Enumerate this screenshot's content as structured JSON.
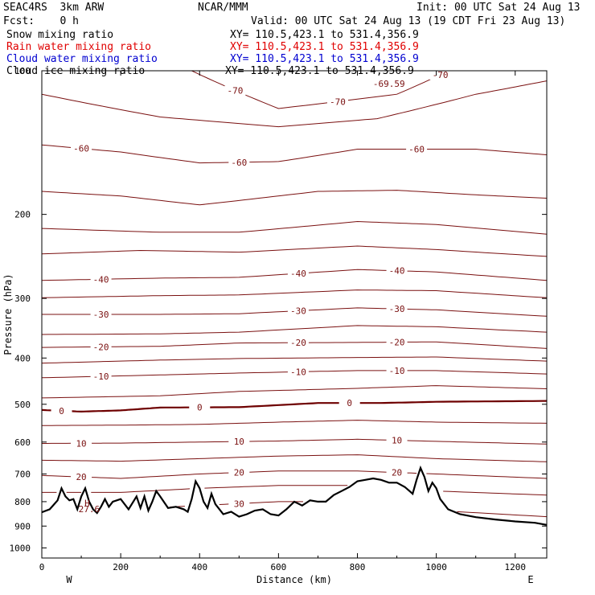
{
  "header": {
    "model": "SEAC4RS  3km ARW",
    "org": "NCAR/MMM",
    "init": "Init: 00 UTC Sat 24 Aug 13",
    "fcst": "Fcst:    0 h",
    "valid": "Valid: 00 UTC Sat 24 Aug 13 (19 CDT Fri 23 Aug 13)"
  },
  "fields": [
    {
      "name": "Snow mixing ratio",
      "xy": "XY= 110.5,423.1 to 531.4,356.9",
      "color": "#000000"
    },
    {
      "name": "Rain water mixing ratio",
      "xy": "XY= 110.5,423.1 to 531.4,356.9",
      "color": "#e00000"
    },
    {
      "name": "Cloud water mixing ratio",
      "xy": "XY= 110.5,423.1 to 531.4,356.9",
      "color": "#0000d0"
    },
    {
      "name": "Cloud ice mixing ratio",
      "xy": "XY= 110.5,423.1 to 531.4,356.9",
      "color": "#000000"
    }
  ],
  "chart_data": {
    "type": "line",
    "xlabel": "Distance (km)",
    "ylabel": "Pressure (hPa)",
    "xlim": [
      0,
      1280
    ],
    "ylim": [
      1050,
      100
    ],
    "yscale": "log",
    "x_ticks": [
      0,
      200,
      400,
      600,
      800,
      1000,
      1200
    ],
    "y_ticks": [
      200,
      300,
      400,
      500,
      600,
      700,
      800,
      900,
      1000
    ],
    "top_tick_label": "100",
    "end_labels": {
      "left": "W",
      "right": "E"
    },
    "contour_color": "#7a1010",
    "zero_contour_color": "#6e0000",
    "annotations": {
      "max_label": "-69.59",
      "high_marker": "H",
      "high_value": "27.6"
    },
    "isotherms": [
      {
        "value": -70,
        "label": "-70",
        "points": [
          [
            380,
            100
          ],
          [
            600,
            120
          ],
          [
            900,
            112
          ],
          [
            1120,
            92
          ],
          [
            1280,
            80
          ]
        ]
      },
      {
        "value": -65,
        "label": "",
        "points": [
          [
            0,
            112
          ],
          [
            300,
            125
          ],
          [
            600,
            131
          ],
          [
            850,
            126
          ],
          [
            1100,
            112
          ],
          [
            1280,
            105
          ]
        ]
      },
      {
        "value": -60,
        "label": "-60",
        "points": [
          [
            0,
            143
          ],
          [
            200,
            148
          ],
          [
            400,
            156
          ],
          [
            600,
            155
          ],
          [
            800,
            146
          ],
          [
            1100,
            146
          ],
          [
            1280,
            150
          ]
        ]
      },
      {
        "value": -55,
        "label": "",
        "points": [
          [
            0,
            179
          ],
          [
            200,
            183
          ],
          [
            400,
            191
          ],
          [
            700,
            179
          ],
          [
            900,
            178
          ],
          [
            1100,
            182
          ],
          [
            1280,
            185
          ]
        ]
      },
      {
        "value": -50,
        "label": "",
        "points": [
          [
            0,
            214
          ],
          [
            300,
            218
          ],
          [
            500,
            218
          ],
          [
            800,
            207
          ],
          [
            1000,
            210
          ],
          [
            1280,
            220
          ]
        ]
      },
      {
        "value": -45,
        "label": "",
        "points": [
          [
            0,
            242
          ],
          [
            250,
            238
          ],
          [
            500,
            240
          ],
          [
            800,
            233
          ],
          [
            1000,
            237
          ],
          [
            1280,
            245
          ]
        ]
      },
      {
        "value": -40,
        "label": "-40",
        "points": [
          [
            0,
            275
          ],
          [
            300,
            272
          ],
          [
            500,
            271
          ],
          [
            800,
            261
          ],
          [
            1000,
            264
          ],
          [
            1280,
            275
          ]
        ]
      },
      {
        "value": -35,
        "label": "",
        "points": [
          [
            0,
            299
          ],
          [
            300,
            296
          ],
          [
            500,
            295
          ],
          [
            800,
            288
          ],
          [
            1000,
            289
          ],
          [
            1280,
            299
          ]
        ]
      },
      {
        "value": -30,
        "label": "-30",
        "points": [
          [
            0,
            324
          ],
          [
            300,
            324
          ],
          [
            500,
            323
          ],
          [
            800,
            314
          ],
          [
            1000,
            317
          ],
          [
            1280,
            327
          ]
        ]
      },
      {
        "value": -25,
        "label": "",
        "points": [
          [
            0,
            357
          ],
          [
            300,
            356
          ],
          [
            500,
            353
          ],
          [
            800,
            342
          ],
          [
            1000,
            344
          ],
          [
            1280,
            353
          ]
        ]
      },
      {
        "value": -20,
        "label": "-20",
        "points": [
          [
            0,
            380
          ],
          [
            300,
            378
          ],
          [
            500,
            372
          ],
          [
            800,
            371
          ],
          [
            1000,
            370
          ],
          [
            1280,
            382
          ]
        ]
      },
      {
        "value": -15,
        "label": "",
        "points": [
          [
            0,
            410
          ],
          [
            300,
            404
          ],
          [
            500,
            401
          ],
          [
            800,
            399
          ],
          [
            1000,
            398
          ],
          [
            1280,
            406
          ]
        ]
      },
      {
        "value": -10,
        "label": "-10",
        "points": [
          [
            0,
            440
          ],
          [
            300,
            434
          ],
          [
            500,
            430
          ],
          [
            800,
            425
          ],
          [
            1000,
            425
          ],
          [
            1280,
            432
          ]
        ]
      },
      {
        "value": -5,
        "label": "",
        "points": [
          [
            0,
            485
          ],
          [
            300,
            480
          ],
          [
            500,
            470
          ],
          [
            800,
            463
          ],
          [
            1000,
            457
          ],
          [
            1280,
            464
          ]
        ]
      },
      {
        "value": 0,
        "label": "0",
        "points": [
          [
            0,
            514
          ],
          [
            100,
            518
          ],
          [
            200,
            515
          ],
          [
            300,
            508
          ],
          [
            500,
            507
          ],
          [
            700,
            497
          ],
          [
            860,
            497
          ],
          [
            1000,
            494
          ],
          [
            1280,
            492
          ]
        ]
      },
      {
        "value": 5,
        "label": "",
        "points": [
          [
            0,
            554
          ],
          [
            200,
            553
          ],
          [
            400,
            551
          ],
          [
            600,
            545
          ],
          [
            800,
            540
          ],
          [
            1000,
            545
          ],
          [
            1280,
            548
          ]
        ]
      },
      {
        "value": 10,
        "label": "10",
        "points": [
          [
            0,
            604
          ],
          [
            200,
            603
          ],
          [
            400,
            600
          ],
          [
            600,
            597
          ],
          [
            800,
            592
          ],
          [
            1000,
            598
          ],
          [
            1280,
            606
          ]
        ]
      },
      {
        "value": 15,
        "label": "",
        "points": [
          [
            0,
            655
          ],
          [
            200,
            658
          ],
          [
            400,
            650
          ],
          [
            600,
            642
          ],
          [
            800,
            638
          ],
          [
            1000,
            650
          ],
          [
            1280,
            660
          ]
        ]
      },
      {
        "value": 20,
        "label": "20",
        "points": [
          [
            0,
            705
          ],
          [
            200,
            715
          ],
          [
            400,
            700
          ],
          [
            600,
            690
          ],
          [
            800,
            690
          ],
          [
            1000,
            700
          ],
          [
            1280,
            715
          ]
        ]
      },
      {
        "value": 25,
        "label": "",
        "points": [
          [
            0,
            765
          ],
          [
            200,
            765
          ],
          [
            400,
            750
          ],
          [
            600,
            740
          ],
          [
            800,
            740
          ],
          [
            1000,
            760
          ],
          [
            1280,
            775
          ]
        ]
      },
      {
        "value": 30,
        "label": "30",
        "points": [
          [
            0,
            840
          ],
          [
            200,
            830
          ],
          [
            400,
            815
          ],
          [
            600,
            800
          ],
          [
            800,
            800
          ],
          [
            1000,
            835
          ],
          [
            1280,
            860
          ]
        ]
      }
    ],
    "terrain": [
      [
        0,
        842
      ],
      [
        20,
        830
      ],
      [
        40,
        795
      ],
      [
        50,
        750
      ],
      [
        60,
        780
      ],
      [
        70,
        795
      ],
      [
        80,
        790
      ],
      [
        90,
        830
      ],
      [
        100,
        780
      ],
      [
        110,
        750
      ],
      [
        120,
        800
      ],
      [
        130,
        830
      ],
      [
        140,
        845
      ],
      [
        150,
        820
      ],
      [
        160,
        790
      ],
      [
        170,
        820
      ],
      [
        180,
        800
      ],
      [
        200,
        790
      ],
      [
        220,
        830
      ],
      [
        240,
        780
      ],
      [
        250,
        825
      ],
      [
        260,
        780
      ],
      [
        270,
        835
      ],
      [
        280,
        800
      ],
      [
        290,
        760
      ],
      [
        300,
        780
      ],
      [
        320,
        825
      ],
      [
        340,
        820
      ],
      [
        360,
        830
      ],
      [
        370,
        840
      ],
      [
        380,
        790
      ],
      [
        390,
        725
      ],
      [
        400,
        750
      ],
      [
        410,
        800
      ],
      [
        420,
        825
      ],
      [
        430,
        770
      ],
      [
        440,
        810
      ],
      [
        460,
        850
      ],
      [
        480,
        840
      ],
      [
        500,
        860
      ],
      [
        520,
        850
      ],
      [
        540,
        835
      ],
      [
        560,
        830
      ],
      [
        580,
        850
      ],
      [
        600,
        855
      ],
      [
        620,
        830
      ],
      [
        640,
        800
      ],
      [
        660,
        815
      ],
      [
        680,
        795
      ],
      [
        700,
        800
      ],
      [
        720,
        800
      ],
      [
        740,
        775
      ],
      [
        760,
        760
      ],
      [
        780,
        745
      ],
      [
        800,
        725
      ],
      [
        820,
        720
      ],
      [
        840,
        715
      ],
      [
        860,
        720
      ],
      [
        880,
        730
      ],
      [
        900,
        730
      ],
      [
        920,
        745
      ],
      [
        940,
        770
      ],
      [
        950,
        720
      ],
      [
        960,
        680
      ],
      [
        970,
        710
      ],
      [
        980,
        760
      ],
      [
        990,
        730
      ],
      [
        1000,
        750
      ],
      [
        1010,
        790
      ],
      [
        1030,
        830
      ],
      [
        1060,
        850
      ],
      [
        1100,
        862
      ],
      [
        1150,
        872
      ],
      [
        1200,
        880
      ],
      [
        1250,
        886
      ],
      [
        1280,
        895
      ]
    ]
  }
}
